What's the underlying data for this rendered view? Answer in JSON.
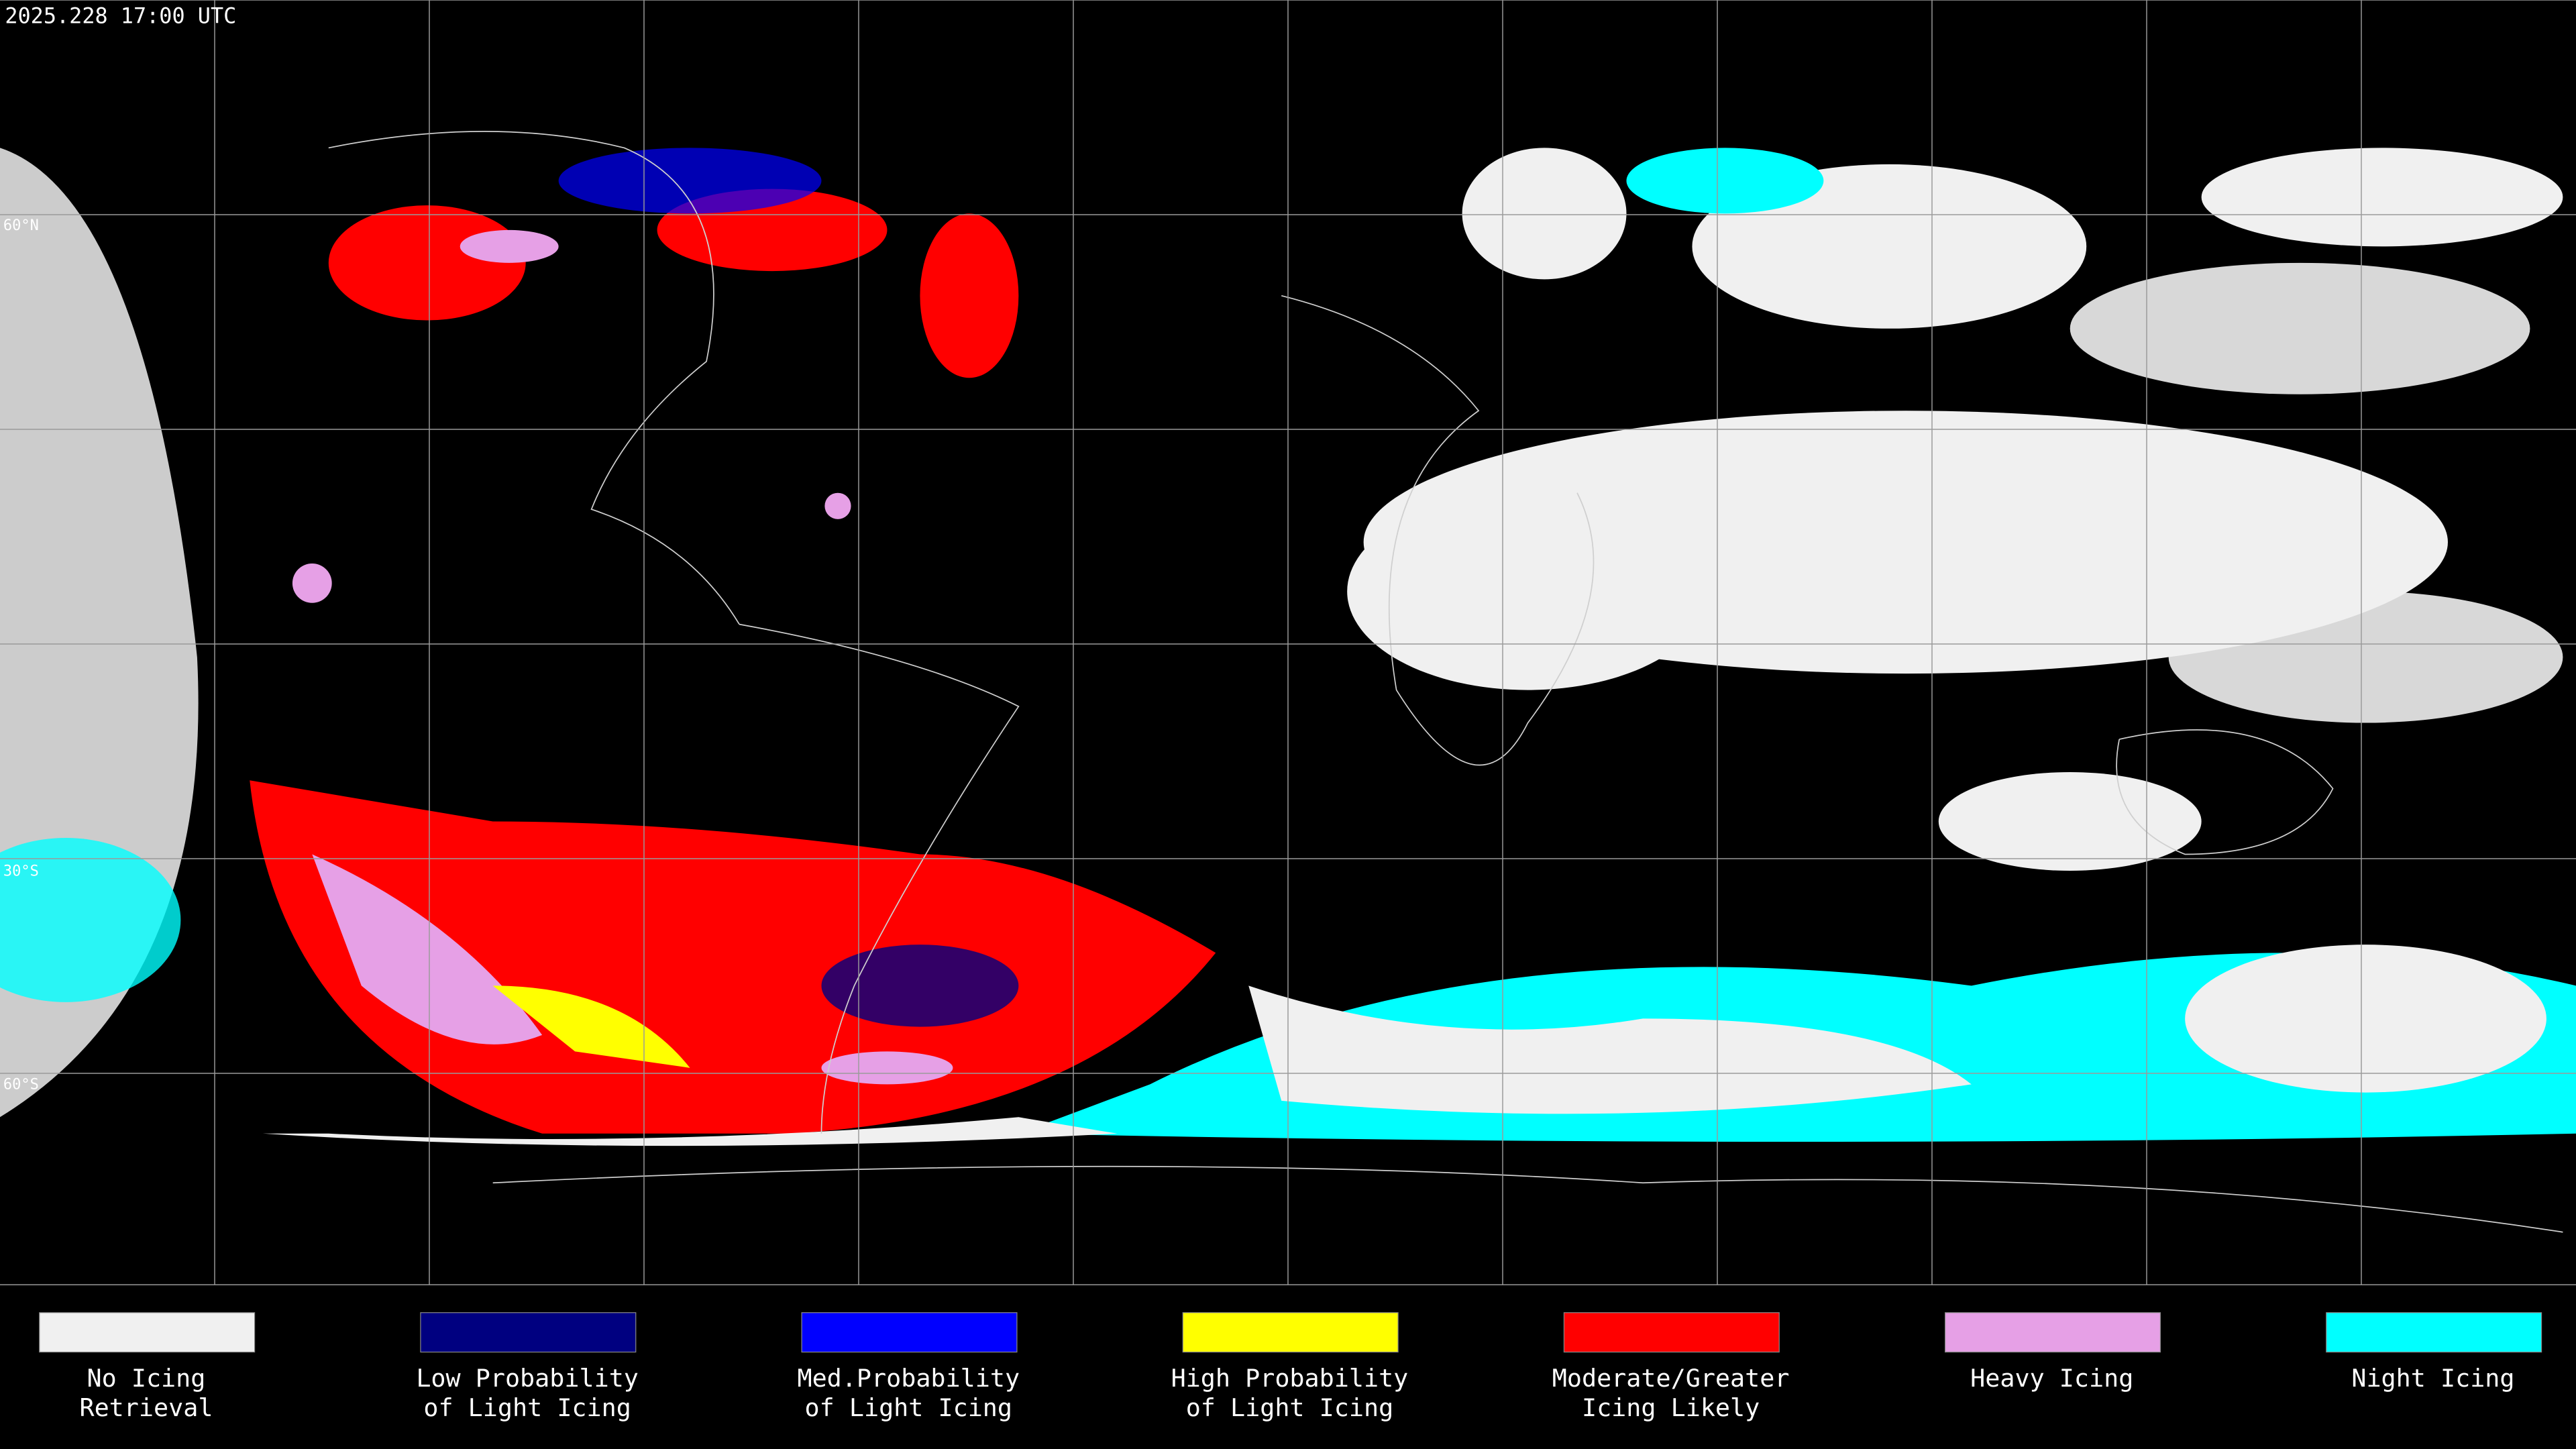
{
  "header": {
    "timestamp": "2025.228 17:00 UTC"
  },
  "map": {
    "latitude_labels": [
      "60°N",
      "30°S",
      "60°S"
    ]
  },
  "legend": {
    "items": [
      {
        "label": [
          "No Icing",
          "Retrieval"
        ],
        "color": "#f0f0f0"
      },
      {
        "label": [
          "Low Probability",
          "of Light Icing"
        ],
        "color": "#000080"
      },
      {
        "label": [
          "Med.Probability",
          "of Light Icing"
        ],
        "color": "#0000ff"
      },
      {
        "label": [
          "High Probability",
          "of Light Icing"
        ],
        "color": "#ffff00"
      },
      {
        "label": [
          "Moderate/Greater",
          "Icing Likely"
        ],
        "color": "#ff0000"
      },
      {
        "label": [
          "Heavy Icing"
        ],
        "color": "#e6a0e6"
      },
      {
        "label": [
          "Night Icing"
        ],
        "color": "#00ffff"
      }
    ]
  }
}
